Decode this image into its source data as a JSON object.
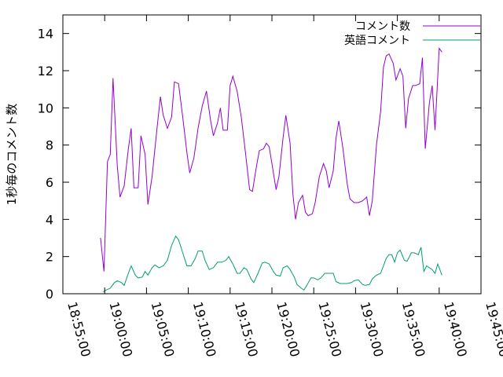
{
  "chart_data": {
    "type": "line",
    "title": "",
    "xlabel": "",
    "ylabel": "1秒毎のコメント数",
    "xlim": [
      "18:55:00",
      "19:45:00"
    ],
    "ylim": [
      0,
      15
    ],
    "x_ticks": [
      "18:55:00",
      "19:00:00",
      "19:05:00",
      "19:10:00",
      "19:15:00",
      "19:20:00",
      "19:25:00",
      "19:30:00",
      "19:35:00",
      "19:40:00",
      "19:45:00"
    ],
    "y_ticks": [
      0,
      2,
      4,
      6,
      8,
      10,
      12,
      14
    ],
    "grid": false,
    "legend_position": "top-right",
    "colors": {
      "comments": "#9400d3",
      "english": "#009e73",
      "axis": "#000000"
    },
    "series": [
      {
        "name": "コメント数",
        "color": "#9400d3",
        "points": [
          [
            "18:59:30",
            3.0
          ],
          [
            "18:59:55",
            1.2
          ],
          [
            "19:00:20",
            7.1
          ],
          [
            "19:00:40",
            7.5
          ],
          [
            "19:01:00",
            11.6
          ],
          [
            "19:01:30",
            6.9
          ],
          [
            "19:01:50",
            5.2
          ],
          [
            "19:02:20",
            5.8
          ],
          [
            "19:02:50",
            7.8
          ],
          [
            "19:03:10",
            8.9
          ],
          [
            "19:03:30",
            5.7
          ],
          [
            "19:04:00",
            5.7
          ],
          [
            "19:04:20",
            8.5
          ],
          [
            "19:04:50",
            7.5
          ],
          [
            "19:05:10",
            4.8
          ],
          [
            "19:05:40",
            6.3
          ],
          [
            "19:06:10",
            8.5
          ],
          [
            "19:06:40",
            10.6
          ],
          [
            "19:07:00",
            9.6
          ],
          [
            "19:07:30",
            8.9
          ],
          [
            "19:08:00",
            9.5
          ],
          [
            "19:08:20",
            11.4
          ],
          [
            "19:08:50",
            11.3
          ],
          [
            "19:09:20",
            9.5
          ],
          [
            "19:09:50",
            7.6
          ],
          [
            "19:10:10",
            6.5
          ],
          [
            "19:10:40",
            7.3
          ],
          [
            "19:11:10",
            8.9
          ],
          [
            "19:11:40",
            10.1
          ],
          [
            "19:12:10",
            10.9
          ],
          [
            "19:12:40",
            9.3
          ],
          [
            "19:13:00",
            8.5
          ],
          [
            "19:13:30",
            9.2
          ],
          [
            "19:13:50",
            10.0
          ],
          [
            "19:14:10",
            8.8
          ],
          [
            "19:14:40",
            8.8
          ],
          [
            "19:15:00",
            11.2
          ],
          [
            "19:15:20",
            11.7
          ],
          [
            "19:15:50",
            10.9
          ],
          [
            "19:16:20",
            9.5
          ],
          [
            "19:16:50",
            7.6
          ],
          [
            "19:17:20",
            5.6
          ],
          [
            "19:17:40",
            5.5
          ],
          [
            "19:18:10",
            6.9
          ],
          [
            "19:18:30",
            7.7
          ],
          [
            "19:19:00",
            7.8
          ],
          [
            "19:19:20",
            8.1
          ],
          [
            "19:19:40",
            7.9
          ],
          [
            "19:20:00",
            7.0
          ],
          [
            "19:20:30",
            5.6
          ],
          [
            "19:20:50",
            6.3
          ],
          [
            "19:21:20",
            8.4
          ],
          [
            "19:21:40",
            9.6
          ],
          [
            "19:22:10",
            8.1
          ],
          [
            "19:22:30",
            5.4
          ],
          [
            "19:22:50",
            4.0
          ],
          [
            "19:23:10",
            4.9
          ],
          [
            "19:23:40",
            5.3
          ],
          [
            "19:24:00",
            4.4
          ],
          [
            "19:24:20",
            4.2
          ],
          [
            "19:24:50",
            4.3
          ],
          [
            "19:25:10",
            4.9
          ],
          [
            "19:25:40",
            6.3
          ],
          [
            "19:26:10",
            7.0
          ],
          [
            "19:26:30",
            6.6
          ],
          [
            "19:26:50",
            5.7
          ],
          [
            "19:27:20",
            6.6
          ],
          [
            "19:27:40",
            8.4
          ],
          [
            "19:28:00",
            9.3
          ],
          [
            "19:28:30",
            7.8
          ],
          [
            "19:29:00",
            5.9
          ],
          [
            "19:29:20",
            5.1
          ],
          [
            "19:29:50",
            4.9
          ],
          [
            "19:30:20",
            4.9
          ],
          [
            "19:30:50",
            5.0
          ],
          [
            "19:31:20",
            5.2
          ],
          [
            "19:31:40",
            4.2
          ],
          [
            "19:32:00",
            5.0
          ],
          [
            "19:32:30",
            8.0
          ],
          [
            "19:33:00",
            9.8
          ],
          [
            "19:33:20",
            12.2
          ],
          [
            "19:33:40",
            12.8
          ],
          [
            "19:34:00",
            12.9
          ],
          [
            "19:34:30",
            12.4
          ],
          [
            "19:34:50",
            11.5
          ],
          [
            "19:35:20",
            12.1
          ],
          [
            "19:35:40",
            11.7
          ],
          [
            "19:36:00",
            8.9
          ],
          [
            "19:36:20",
            10.5
          ],
          [
            "19:36:50",
            11.2
          ],
          [
            "19:37:10",
            11.2
          ],
          [
            "19:37:40",
            11.3
          ],
          [
            "19:38:00",
            12.7
          ],
          [
            "19:38:20",
            7.8
          ],
          [
            "19:38:50",
            10.3
          ],
          [
            "19:39:10",
            11.2
          ],
          [
            "19:39:30",
            8.8
          ],
          [
            "19:40:00",
            13.2
          ],
          [
            "19:40:20",
            13.0
          ]
        ]
      },
      {
        "name": "英語コメント",
        "color": "#009e73",
        "points": [
          [
            "18:59:50",
            0.1
          ],
          [
            "19:00:10",
            0.2
          ],
          [
            "19:00:40",
            0.3
          ],
          [
            "19:01:10",
            0.6
          ],
          [
            "19:01:30",
            0.7
          ],
          [
            "19:02:00",
            0.6
          ],
          [
            "19:02:20",
            0.45
          ],
          [
            "19:02:50",
            1.1
          ],
          [
            "19:03:10",
            1.5
          ],
          [
            "19:03:40",
            1.0
          ],
          [
            "19:04:00",
            0.85
          ],
          [
            "19:04:30",
            0.9
          ],
          [
            "19:04:50",
            1.2
          ],
          [
            "19:05:10",
            1.0
          ],
          [
            "19:05:40",
            1.4
          ],
          [
            "19:06:00",
            1.55
          ],
          [
            "19:06:30",
            1.4
          ],
          [
            "19:07:00",
            1.5
          ],
          [
            "19:07:30",
            1.8
          ],
          [
            "19:08:00",
            2.6
          ],
          [
            "19:08:30",
            3.1
          ],
          [
            "19:08:50",
            2.9
          ],
          [
            "19:09:20",
            2.2
          ],
          [
            "19:09:50",
            1.5
          ],
          [
            "19:10:20",
            1.5
          ],
          [
            "19:10:50",
            1.9
          ],
          [
            "19:11:10",
            2.3
          ],
          [
            "19:11:40",
            2.3
          ],
          [
            "19:12:00",
            1.8
          ],
          [
            "19:12:30",
            1.3
          ],
          [
            "19:13:00",
            1.4
          ],
          [
            "19:13:30",
            1.7
          ],
          [
            "19:14:00",
            1.7
          ],
          [
            "19:14:30",
            1.8
          ],
          [
            "19:14:50",
            2.0
          ],
          [
            "19:15:20",
            1.6
          ],
          [
            "19:15:50",
            1.1
          ],
          [
            "19:16:10",
            1.1
          ],
          [
            "19:16:40",
            1.4
          ],
          [
            "19:17:00",
            1.3
          ],
          [
            "19:17:30",
            0.8
          ],
          [
            "19:17:50",
            0.6
          ],
          [
            "19:18:20",
            1.1
          ],
          [
            "19:18:50",
            1.65
          ],
          [
            "19:19:10",
            1.7
          ],
          [
            "19:19:40",
            1.6
          ],
          [
            "19:20:10",
            1.2
          ],
          [
            "19:20:30",
            1.0
          ],
          [
            "19:21:00",
            0.95
          ],
          [
            "19:21:20",
            1.4
          ],
          [
            "19:21:50",
            1.5
          ],
          [
            "19:22:10",
            1.3
          ],
          [
            "19:22:40",
            0.9
          ],
          [
            "19:23:00",
            0.5
          ],
          [
            "19:23:30",
            0.3
          ],
          [
            "19:23:50",
            0.2
          ],
          [
            "19:24:10",
            0.45
          ],
          [
            "19:24:40",
            0.85
          ],
          [
            "19:25:00",
            0.85
          ],
          [
            "19:25:30",
            0.75
          ],
          [
            "19:25:50",
            0.85
          ],
          [
            "19:26:20",
            1.1
          ],
          [
            "19:26:50",
            1.1
          ],
          [
            "19:27:20",
            1.1
          ],
          [
            "19:27:40",
            0.65
          ],
          [
            "19:28:10",
            0.55
          ],
          [
            "19:28:40",
            0.55
          ],
          [
            "19:29:00",
            0.55
          ],
          [
            "19:29:30",
            0.6
          ],
          [
            "19:29:50",
            0.7
          ],
          [
            "19:30:20",
            0.75
          ],
          [
            "19:30:50",
            0.5
          ],
          [
            "19:31:10",
            0.45
          ],
          [
            "19:31:40",
            0.5
          ],
          [
            "19:32:00",
            0.8
          ],
          [
            "19:32:30",
            1.0
          ],
          [
            "19:33:00",
            1.1
          ],
          [
            "19:33:20",
            1.5
          ],
          [
            "19:33:40",
            1.9
          ],
          [
            "19:34:00",
            2.1
          ],
          [
            "19:34:20",
            2.1
          ],
          [
            "19:34:40",
            1.7
          ],
          [
            "19:35:00",
            2.2
          ],
          [
            "19:35:20",
            2.35
          ],
          [
            "19:35:50",
            1.8
          ],
          [
            "19:36:10",
            1.75
          ],
          [
            "19:36:40",
            2.2
          ],
          [
            "19:37:00",
            2.2
          ],
          [
            "19:37:30",
            2.1
          ],
          [
            "19:37:50",
            2.5
          ],
          [
            "19:38:10",
            1.2
          ],
          [
            "19:38:30",
            1.5
          ],
          [
            "19:38:50",
            1.4
          ],
          [
            "19:39:10",
            1.3
          ],
          [
            "19:39:30",
            1.1
          ],
          [
            "19:39:50",
            1.6
          ],
          [
            "19:40:20",
            1.0
          ]
        ]
      }
    ]
  }
}
